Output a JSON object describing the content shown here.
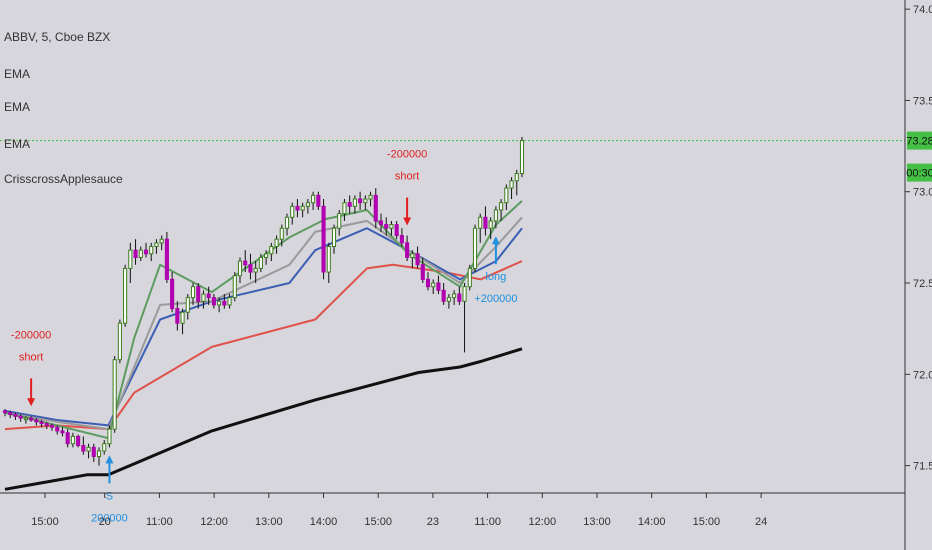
{
  "header": {
    "symbol_line": "ABBV, 5, Cboe BZX",
    "indicators": [
      "EMA",
      "EMA",
      "EMA",
      "CrisscrossApplesauce"
    ]
  },
  "colors": {
    "background": "#d6d6dc",
    "axis": "#333333",
    "bull_candle": "#3c7d1a",
    "bear_candle": "#b000b0",
    "neutral_candle": "#111111",
    "ema_fast": "#5e9b60",
    "ema_mid": "#9a9a9a",
    "ema_blue": "#3c5fb4",
    "ema_red": "#e0524a",
    "ema_slow": "#111111",
    "price_line": "#44c044",
    "signal_short": "#e02020",
    "signal_long": "#2090e0",
    "label_bg": "#44c044"
  },
  "price_label": "73.28",
  "countdown_label": "00:30",
  "chart_data": {
    "type": "line",
    "title": "ABBV, 5, Cboe BZX",
    "y_ticks": [
      "74.00",
      "73.50",
      "73.00",
      "72.50",
      "72.00",
      "71.50"
    ],
    "x_ticks": [
      "15:00",
      "20",
      "11:00",
      "12:00",
      "13:00",
      "14:00",
      "15:00",
      "23",
      "11:00",
      "12:00",
      "13:00",
      "14:00",
      "15:00",
      "24"
    ],
    "ylim": [
      71.35,
      74.05
    ],
    "current_price": 73.28,
    "bars": [
      [
        71.8,
        71.81,
        71.77,
        71.79
      ],
      [
        71.79,
        71.8,
        71.76,
        71.78
      ],
      [
        71.78,
        71.79,
        71.75,
        71.77
      ],
      [
        71.77,
        71.78,
        71.74,
        71.76
      ],
      [
        71.76,
        71.77,
        71.73,
        71.76
      ],
      [
        71.76,
        71.77,
        71.74,
        71.75
      ],
      [
        71.75,
        71.76,
        71.72,
        71.74
      ],
      [
        71.74,
        71.75,
        71.71,
        71.73
      ],
      [
        71.73,
        71.74,
        71.7,
        71.72
      ],
      [
        71.72,
        71.73,
        71.69,
        71.71
      ],
      [
        71.71,
        71.72,
        71.67,
        71.69
      ],
      [
        71.69,
        71.71,
        71.66,
        71.68
      ],
      [
        71.68,
        71.7,
        71.6,
        71.62
      ],
      [
        71.62,
        71.68,
        71.6,
        71.66
      ],
      [
        71.66,
        71.67,
        71.6,
        71.61
      ],
      [
        71.61,
        71.66,
        71.56,
        71.58
      ],
      [
        71.58,
        71.62,
        71.54,
        71.6
      ],
      [
        71.6,
        71.62,
        71.52,
        71.55
      ],
      [
        71.55,
        71.6,
        71.5,
        71.58
      ],
      [
        71.58,
        71.64,
        71.56,
        71.62
      ],
      [
        71.62,
        71.72,
        71.6,
        71.7
      ],
      [
        71.7,
        72.1,
        71.68,
        72.08
      ],
      [
        72.08,
        72.3,
        72.06,
        72.28
      ],
      [
        72.28,
        72.6,
        72.26,
        72.58
      ],
      [
        72.58,
        72.72,
        72.5,
        72.68
      ],
      [
        72.68,
        72.74,
        72.6,
        72.64
      ],
      [
        72.64,
        72.7,
        72.62,
        72.68
      ],
      [
        72.68,
        72.72,
        72.64,
        72.66
      ],
      [
        72.66,
        72.72,
        72.62,
        72.7
      ],
      [
        72.7,
        72.74,
        72.66,
        72.72
      ],
      [
        72.72,
        72.76,
        72.68,
        72.74
      ],
      [
        72.74,
        72.78,
        72.5,
        72.52
      ],
      [
        72.52,
        72.56,
        72.34,
        72.36
      ],
      [
        72.36,
        72.4,
        72.24,
        72.28
      ],
      [
        72.28,
        72.36,
        72.22,
        72.34
      ],
      [
        72.34,
        72.44,
        72.3,
        72.42
      ],
      [
        72.42,
        72.5,
        72.38,
        72.48
      ],
      [
        72.48,
        72.5,
        72.36,
        72.4
      ],
      [
        72.4,
        72.46,
        72.36,
        72.44
      ],
      [
        72.44,
        72.48,
        72.38,
        72.42
      ],
      [
        72.42,
        72.44,
        72.36,
        72.38
      ],
      [
        72.38,
        72.42,
        72.34,
        72.4
      ],
      [
        72.4,
        72.44,
        72.36,
        72.38
      ],
      [
        72.38,
        72.44,
        72.36,
        72.42
      ],
      [
        72.42,
        72.56,
        72.4,
        72.54
      ],
      [
        72.54,
        72.64,
        72.5,
        72.62
      ],
      [
        72.62,
        72.68,
        72.56,
        72.6
      ],
      [
        72.6,
        72.66,
        72.52,
        72.56
      ],
      [
        72.56,
        72.62,
        72.5,
        72.58
      ],
      [
        72.58,
        72.66,
        72.56,
        72.64
      ],
      [
        72.64,
        72.68,
        72.6,
        72.66
      ],
      [
        72.66,
        72.72,
        72.62,
        72.7
      ],
      [
        72.7,
        72.76,
        72.66,
        72.74
      ],
      [
        72.74,
        72.82,
        72.7,
        72.8
      ],
      [
        72.8,
        72.88,
        72.76,
        72.86
      ],
      [
        72.86,
        72.94,
        72.82,
        72.92
      ],
      [
        72.92,
        72.96,
        72.86,
        72.9
      ],
      [
        72.9,
        72.94,
        72.86,
        72.92
      ],
      [
        72.92,
        72.96,
        72.88,
        72.94
      ],
      [
        72.94,
        73.0,
        72.9,
        72.98
      ],
      [
        72.98,
        73.0,
        72.9,
        72.92
      ],
      [
        72.92,
        72.96,
        72.52,
        72.56
      ],
      [
        72.56,
        72.72,
        72.5,
        72.7
      ],
      [
        72.7,
        72.82,
        72.66,
        72.8
      ],
      [
        72.8,
        72.9,
        72.76,
        72.88
      ],
      [
        72.88,
        72.96,
        72.84,
        72.94
      ],
      [
        72.94,
        72.98,
        72.88,
        72.92
      ],
      [
        72.92,
        72.98,
        72.88,
        72.96
      ],
      [
        72.96,
        73.0,
        72.9,
        72.94
      ],
      [
        72.94,
        72.98,
        72.9,
        72.96
      ],
      [
        72.96,
        73.0,
        72.92,
        72.98
      ],
      [
        72.98,
        73.02,
        72.8,
        72.84
      ],
      [
        72.84,
        72.88,
        72.78,
        72.82
      ],
      [
        72.82,
        72.86,
        72.76,
        72.8
      ],
      [
        72.8,
        72.84,
        72.76,
        72.82
      ],
      [
        72.82,
        72.84,
        72.74,
        72.76
      ],
      [
        72.76,
        72.8,
        72.7,
        72.72
      ],
      [
        72.72,
        72.76,
        72.62,
        72.64
      ],
      [
        72.64,
        72.68,
        72.58,
        72.66
      ],
      [
        72.66,
        72.7,
        72.58,
        72.6
      ],
      [
        72.6,
        72.64,
        72.5,
        72.52
      ],
      [
        72.52,
        72.56,
        72.46,
        72.48
      ],
      [
        72.48,
        72.52,
        72.44,
        72.5
      ],
      [
        72.5,
        72.54,
        72.44,
        72.46
      ],
      [
        72.46,
        72.5,
        72.38,
        72.4
      ],
      [
        72.4,
        72.44,
        72.36,
        72.42
      ],
      [
        72.42,
        72.46,
        72.38,
        72.44
      ],
      [
        72.44,
        72.48,
        72.38,
        72.4
      ],
      [
        72.4,
        72.5,
        72.12,
        72.48
      ],
      [
        72.48,
        72.6,
        72.46,
        72.58
      ],
      [
        72.58,
        72.82,
        72.56,
        72.8
      ],
      [
        72.8,
        72.88,
        72.72,
        72.86
      ],
      [
        72.86,
        72.92,
        72.76,
        72.8
      ],
      [
        72.8,
        72.86,
        72.74,
        72.84
      ],
      [
        72.84,
        72.92,
        72.8,
        72.9
      ],
      [
        72.9,
        72.96,
        72.84,
        72.94
      ],
      [
        72.94,
        73.04,
        72.9,
        73.02
      ],
      [
        73.02,
        73.08,
        72.96,
        73.06
      ],
      [
        73.06,
        73.12,
        72.98,
        73.1
      ],
      [
        73.1,
        73.3,
        73.08,
        73.28
      ]
    ],
    "series": [
      {
        "color": "#111111",
        "x": [
          0,
          8,
          16,
          20,
          40,
          60,
          80,
          88,
          92,
          100
        ],
        "y": [
          71.37,
          71.41,
          71.45,
          71.45,
          71.69,
          71.86,
          72.01,
          72.04,
          72.07,
          72.14
        ]
      },
      {
        "color": "#e0524a",
        "x": [
          0,
          10,
          20,
          25,
          40,
          60,
          70,
          75,
          85,
          92,
          100
        ],
        "y": [
          71.7,
          71.72,
          71.7,
          71.9,
          72.15,
          72.3,
          72.58,
          72.6,
          72.56,
          72.52,
          72.62
        ]
      },
      {
        "color": "#3c5fb4",
        "x": [
          0,
          10,
          20,
          30,
          40,
          55,
          60,
          70,
          78,
          88,
          95,
          100
        ],
        "y": [
          71.8,
          71.75,
          71.72,
          72.3,
          72.4,
          72.5,
          72.68,
          72.8,
          72.68,
          72.52,
          72.62,
          72.8
        ]
      },
      {
        "color": "#9a9a9a",
        "x": [
          0,
          10,
          20,
          30,
          40,
          55,
          60,
          70,
          78,
          88,
          95,
          100
        ],
        "y": [
          71.79,
          71.74,
          71.7,
          72.38,
          72.4,
          72.6,
          72.78,
          72.84,
          72.68,
          72.5,
          72.7,
          72.86
        ]
      },
      {
        "color": "#5e9b60",
        "x": [
          0,
          10,
          20,
          25,
          30,
          40,
          55,
          62,
          70,
          78,
          88,
          95,
          100
        ],
        "y": [
          71.79,
          71.72,
          71.65,
          72.2,
          72.6,
          72.45,
          72.75,
          72.85,
          72.9,
          72.66,
          72.48,
          72.82,
          72.95
        ]
      }
    ],
    "annotations": [
      {
        "type": "short",
        "bar": 5,
        "texts": [
          "-200000",
          "short"
        ]
      },
      {
        "type": "long",
        "bar": 20,
        "texts": [
          "S",
          "200000"
        ]
      },
      {
        "type": "short",
        "bar": 77,
        "texts": [
          "-200000",
          "short"
        ]
      },
      {
        "type": "long",
        "bar": 94,
        "texts": [
          "long",
          "+200000"
        ]
      }
    ]
  }
}
